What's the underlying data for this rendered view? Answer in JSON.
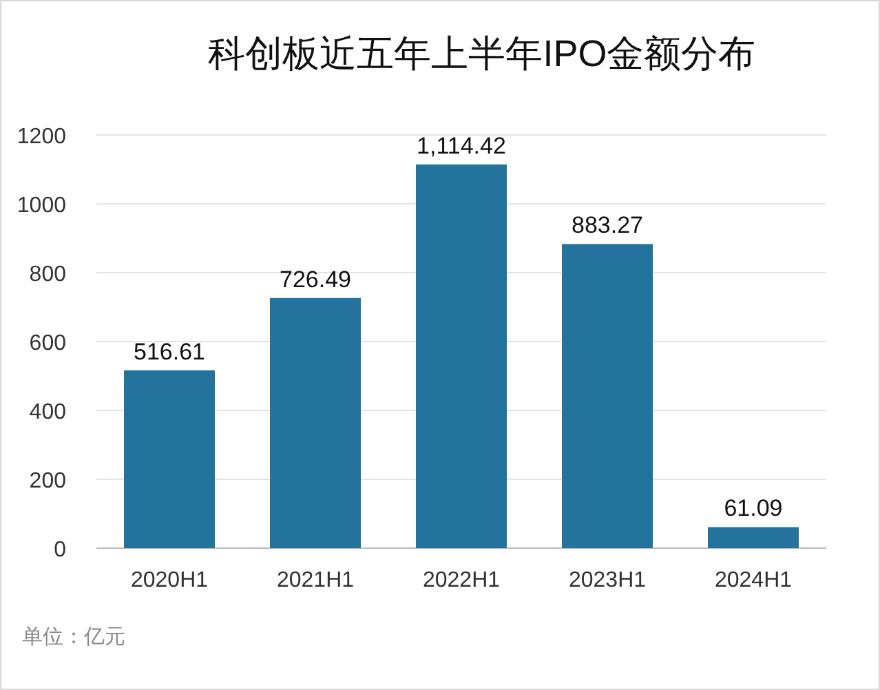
{
  "chart_data": {
    "type": "bar",
    "title": "科创板近五年上半年IPO金额分布",
    "categories": [
      "2020H1",
      "2021H1",
      "2022H1",
      "2023H1",
      "2024H1"
    ],
    "values": [
      516.61,
      726.49,
      1114.42,
      883.27,
      61.09
    ],
    "value_labels": [
      "516.61",
      "726.49",
      "1,114.42",
      "883.27",
      "61.09"
    ],
    "color": "#23739c",
    "ylim": [
      0,
      1200
    ],
    "yticks": [
      0,
      200,
      400,
      600,
      800,
      1000,
      1200
    ],
    "grid": "y",
    "annotations": [
      "单位：亿元"
    ]
  }
}
